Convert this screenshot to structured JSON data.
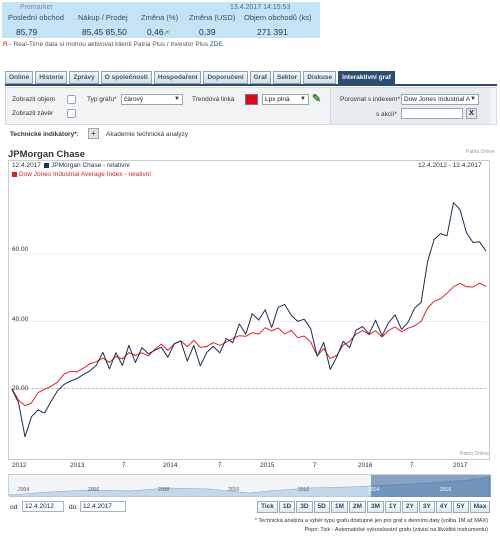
{
  "quote": {
    "premarket": "Premarket",
    "timestamp": "13.4.2017 14:15:53",
    "headers": [
      "Poslední obchod",
      "Nákup / Prodej",
      "Změna (%)",
      "Změna (USD)",
      "Objem obchodů (ks)"
    ],
    "last": "85,79",
    "bid_ask": "85,45 85,50",
    "change_pct": "0,46",
    "change_usd": "0,39",
    "volume": "271 391"
  },
  "realtime": {
    "marker": "R",
    "text": " - Real-Time data si mohou aktivovat klienti Patria Plus / Investor Plus ",
    "link": "ZDE",
    "tail": "."
  },
  "tabs": [
    "Online",
    "Historie",
    "Zprávy",
    "O společnosti",
    "Hospodaření",
    "Doporučení",
    "Graf",
    "Sektor",
    "Diskuse",
    "Interaktivní graf"
  ],
  "active_tab": "Interaktivní graf",
  "controls": {
    "show_volume": "Zobrazit objem",
    "show_close": "Zobrazit závěr",
    "chart_type_label": "Typ grafu*",
    "chart_type_value": "čárový",
    "trendline_label": "Trendová linka",
    "trendline_color": "#e8001c",
    "line_type_value": "Lpx plná",
    "compare_label": "Porovnat s indexem*",
    "compare_value": "Dow Jones Industrial A",
    "stock_label": "s akcií*",
    "stock_value": "",
    "clear_button": "X",
    "tech_label": "Technické indikátory*:",
    "add_button": "+",
    "academy": "Akademie technická analýzy"
  },
  "chart_title": "JPMorgan Chase",
  "chart_source": "Patria Online",
  "chart_source_bottom": "Patria Online",
  "chart_data": {
    "type": "line",
    "x_start": "2012-04-12",
    "x_end": "2017-04-12",
    "header_date": "12.4.2017",
    "range_text": "12.4.2012 - 12.4.2017",
    "x_tick_labels": [
      "2012",
      "2013",
      "7",
      "2014",
      "7",
      "2015",
      "7",
      "2016",
      "7",
      "2017"
    ],
    "y_tick_labels": [
      "20.00",
      "40.00",
      "60.00"
    ],
    "ylim": [
      0,
      82
    ],
    "grid": true,
    "legend": "top-left",
    "series": [
      {
        "name": "JPMorgan Chase - relativní",
        "color": "#1b2f4e",
        "points": [
          [
            0,
            20
          ],
          [
            0.5,
            16
          ],
          [
            1,
            6
          ],
          [
            1.5,
            12
          ],
          [
            2,
            14
          ],
          [
            2.5,
            13
          ],
          [
            3,
            16
          ],
          [
            3.5,
            19
          ],
          [
            4,
            21
          ],
          [
            4.5,
            22
          ],
          [
            5,
            23
          ],
          [
            5.5,
            24
          ],
          [
            6,
            25
          ],
          [
            6.5,
            27
          ],
          [
            7,
            31
          ],
          [
            7.5,
            26
          ],
          [
            8,
            31
          ],
          [
            8.5,
            27
          ],
          [
            9,
            33
          ],
          [
            9.5,
            28
          ],
          [
            10,
            32
          ],
          [
            10.5,
            30
          ],
          [
            11,
            31
          ],
          [
            11.5,
            32
          ],
          [
            12,
            29
          ],
          [
            12.5,
            33
          ],
          [
            13,
            34
          ],
          [
            13.5,
            28
          ],
          [
            14,
            33
          ],
          [
            14.5,
            27
          ],
          [
            15,
            31
          ],
          [
            15.5,
            33
          ],
          [
            16,
            31
          ],
          [
            16.5,
            35
          ],
          [
            17,
            34
          ],
          [
            17.5,
            39
          ],
          [
            18,
            36
          ],
          [
            18.5,
            42
          ],
          [
            19,
            40
          ],
          [
            19.5,
            43
          ],
          [
            20,
            38
          ],
          [
            20.5,
            44
          ],
          [
            21,
            45
          ],
          [
            21.5,
            42
          ],
          [
            22,
            40
          ],
          [
            22.5,
            41
          ],
          [
            23,
            38
          ],
          [
            23.5,
            30
          ],
          [
            24,
            34
          ],
          [
            24.5,
            26
          ],
          [
            25,
            29
          ],
          [
            25.5,
            34
          ],
          [
            26,
            32
          ],
          [
            26.5,
            37
          ],
          [
            27,
            38
          ],
          [
            27.5,
            36
          ],
          [
            28,
            40
          ],
          [
            28.5,
            36
          ],
          [
            29,
            40
          ],
          [
            29.5,
            42
          ],
          [
            30,
            38
          ],
          [
            30.5,
            40
          ],
          [
            31,
            44
          ],
          [
            31.5,
            46
          ],
          [
            32,
            58
          ],
          [
            32.5,
            64
          ],
          [
            33,
            66
          ],
          [
            33.5,
            65
          ],
          [
            34,
            75
          ],
          [
            34.5,
            73
          ],
          [
            35,
            66
          ],
          [
            35.5,
            63
          ],
          [
            36,
            64
          ],
          [
            36.5,
            61
          ]
        ]
      },
      {
        "name": "Dow Jones Industrial Average Index - relativní",
        "color": "#e01f26",
        "points": [
          [
            0,
            20
          ],
          [
            0.5,
            17
          ],
          [
            1,
            15
          ],
          [
            1.5,
            16
          ],
          [
            2,
            19
          ],
          [
            2.5,
            20
          ],
          [
            3,
            21
          ],
          [
            3.5,
            22
          ],
          [
            4,
            24
          ],
          [
            4.5,
            25
          ],
          [
            5,
            25
          ],
          [
            5.5,
            26
          ],
          [
            6,
            27
          ],
          [
            6.5,
            28
          ],
          [
            7,
            29
          ],
          [
            7.5,
            28
          ],
          [
            8,
            30
          ],
          [
            8.5,
            29
          ],
          [
            9,
            31
          ],
          [
            9.5,
            30
          ],
          [
            10,
            31
          ],
          [
            10.5,
            30
          ],
          [
            11,
            32
          ],
          [
            11.5,
            33
          ],
          [
            12,
            31
          ],
          [
            12.5,
            33
          ],
          [
            13,
            34
          ],
          [
            13.5,
            32
          ],
          [
            14,
            34
          ],
          [
            14.5,
            32
          ],
          [
            15,
            33
          ],
          [
            15.5,
            34
          ],
          [
            16,
            33
          ],
          [
            16.5,
            34
          ],
          [
            17,
            35
          ],
          [
            17.5,
            36
          ],
          [
            18,
            36
          ],
          [
            18.5,
            37
          ],
          [
            19,
            36
          ],
          [
            19.5,
            38
          ],
          [
            20,
            37
          ],
          [
            20.5,
            38
          ],
          [
            21,
            36
          ],
          [
            21.5,
            37
          ],
          [
            22,
            35
          ],
          [
            22.5,
            36
          ],
          [
            23,
            34
          ],
          [
            23.5,
            30
          ],
          [
            24,
            32
          ],
          [
            24.5,
            29
          ],
          [
            25,
            30
          ],
          [
            25.5,
            33
          ],
          [
            26,
            34
          ],
          [
            26.5,
            36
          ],
          [
            27,
            37
          ],
          [
            27.5,
            36
          ],
          [
            28,
            37
          ],
          [
            28.5,
            35
          ],
          [
            29,
            37
          ],
          [
            29.5,
            38
          ],
          [
            30,
            37
          ],
          [
            30.5,
            38
          ],
          [
            31,
            39
          ],
          [
            31.5,
            40
          ],
          [
            32,
            44
          ],
          [
            32.5,
            46
          ],
          [
            33,
            47
          ],
          [
            33.5,
            48
          ],
          [
            34,
            50
          ],
          [
            34.5,
            51
          ],
          [
            35,
            50
          ],
          [
            35.5,
            50
          ],
          [
            36,
            51
          ],
          [
            36.5,
            50
          ]
        ]
      }
    ]
  },
  "navigator": {
    "labels": [
      "2004",
      "2006",
      "2008",
      "2010",
      "2012",
      "2014",
      "2016"
    ]
  },
  "range": {
    "from_label": "od:",
    "from_value": "12.4.2012",
    "to_label": "do:",
    "to_value": "12.4.2017"
  },
  "periods": [
    "Tick",
    "1D",
    "3D",
    "5D",
    "1M",
    "2M",
    "3M",
    "1Y",
    "2Y",
    "3Y",
    "4Y",
    "5Y",
    "Max"
  ],
  "notes": [
    "* Technická analýza a výběr typu grafu dostupné jen pro graf s denními daty (volba 1M až MAX)",
    "Popn: Tick - Automatické vykreslování grafu (závisí na likvidité instrumentu)"
  ]
}
